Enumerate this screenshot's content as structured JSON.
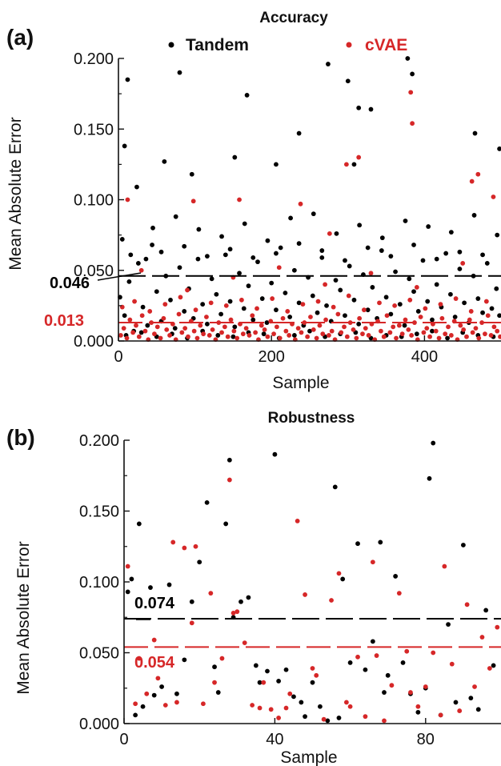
{
  "colors": {
    "tandem": "#000000",
    "cvae": "#d62728",
    "axis": "#111111"
  },
  "chart_data": [
    {
      "type": "scatter",
      "panel_label": "(a)",
      "title": "Accuracy",
      "xlabel": "Sample",
      "ylabel": "Mean Absolute Error",
      "xlim": [
        0,
        500
      ],
      "ylim": [
        0,
        0.2
      ],
      "xticks": [
        "0",
        "200",
        "400"
      ],
      "xtick_values": [
        0,
        200,
        400
      ],
      "yticks": [
        "0.000",
        "0.050",
        "0.100",
        "0.150",
        "0.200"
      ],
      "ytick_values": [
        0,
        0.05,
        0.1,
        0.15,
        0.2
      ],
      "grid": false,
      "legend": {
        "position": "top",
        "entries": [
          "Tandem",
          "cVAE"
        ]
      },
      "mean_lines": [
        {
          "series": "Tandem",
          "value": 0.046,
          "label": "0.046"
        },
        {
          "series": "cVAE",
          "value": 0.013,
          "label": "0.013"
        }
      ],
      "series": [
        {
          "name": "Tandem",
          "x": [
            2,
            8,
            14,
            20,
            26,
            32,
            38,
            44,
            50,
            56,
            62,
            68,
            74,
            80,
            86,
            92,
            98,
            104,
            110,
            116,
            122,
            128,
            134,
            140,
            146,
            152,
            158,
            164,
            170,
            176,
            182,
            188,
            194,
            200,
            206,
            212,
            218,
            224,
            230,
            236,
            242,
            248,
            254,
            260,
            266,
            272,
            278,
            284,
            290,
            296,
            302,
            308,
            314,
            320,
            326,
            332,
            338,
            344,
            350,
            356,
            362,
            368,
            374,
            380,
            386,
            392,
            398,
            404,
            410,
            416,
            422,
            428,
            434,
            440,
            446,
            452,
            458,
            464,
            470,
            476,
            482,
            488,
            494,
            498,
            8,
            12,
            24,
            60,
            80,
            96,
            152,
            168,
            206,
            236,
            274,
            300,
            308,
            314,
            330,
            378,
            384,
            466,
            498,
            5,
            45,
            75,
            105,
            135,
            165,
            195,
            225,
            255,
            285,
            315,
            345,
            375,
            405,
            435,
            465,
            495,
            16,
            36,
            56,
            86,
            116,
            146,
            176,
            206,
            236,
            266,
            296,
            326,
            356,
            386,
            416,
            446,
            476,
            10,
            30,
            50,
            70,
            90,
            110,
            130,
            150,
            170,
            190,
            210,
            230,
            250,
            270,
            290,
            310,
            330,
            350,
            370,
            390,
            410,
            430,
            450,
            470,
            490
          ],
          "y": [
            0.031,
            0.018,
            0.042,
            0.007,
            0.055,
            0.024,
            0.011,
            0.068,
            0.035,
            0.014,
            0.046,
            0.029,
            0.009,
            0.052,
            0.021,
            0.037,
            0.016,
            0.058,
            0.026,
            0.012,
            0.044,
            0.033,
            0.019,
            0.061,
            0.028,
            0.01,
            0.048,
            0.023,
            0.039,
            0.015,
            0.056,
            0.03,
            0.013,
            0.041,
            0.022,
            0.066,
            0.034,
            0.017,
            0.05,
            0.027,
            0.011,
            0.045,
            0.032,
            0.02,
            0.059,
            0.025,
            0.014,
            0.043,
            0.036,
            0.018,
            0.053,
            0.029,
            0.012,
            0.047,
            0.022,
            0.038,
            0.016,
            0.064,
            0.031,
            0.019,
            0.049,
            0.026,
            0.011,
            0.044,
            0.035,
            0.021,
            0.057,
            0.028,
            0.015,
            0.04,
            0.024,
            0.062,
            0.033,
            0.017,
            0.051,
            0.027,
            0.013,
            0.046,
            0.03,
            0.02,
            0.055,
            0.023,
            0.037,
            0.018,
            0.138,
            0.185,
            0.109,
            0.127,
            0.19,
            0.118,
            0.13,
            0.174,
            0.125,
            0.147,
            0.196,
            0.184,
            0.125,
            0.165,
            0.164,
            0.2,
            0.189,
            0.147,
            0.136,
            0.072,
            0.08,
            0.088,
            0.079,
            0.074,
            0.083,
            0.071,
            0.087,
            0.09,
            0.076,
            0.082,
            0.073,
            0.085,
            0.081,
            0.077,
            0.089,
            0.075,
            0.061,
            0.058,
            0.063,
            0.067,
            0.06,
            0.065,
            0.059,
            0.062,
            0.069,
            0.064,
            0.057,
            0.066,
            0.06,
            0.068,
            0.058,
            0.063,
            0.061,
            0.004,
            0.006,
            0.003,
            0.005,
            0.002,
            0.007,
            0.004,
            0.003,
            0.006,
            0.005,
            0.002,
            0.004,
            0.007,
            0.003,
            0.005,
            0.006,
            0.002,
            0.004,
            0.003,
            0.005,
            0.007,
            0.002,
            0.006,
            0.004,
            0.003
          ]
        },
        {
          "name": "cVAE",
          "x": [
            3,
            7,
            11,
            15,
            19,
            23,
            27,
            31,
            35,
            39,
            43,
            47,
            51,
            55,
            59,
            63,
            67,
            71,
            75,
            79,
            83,
            87,
            91,
            95,
            99,
            103,
            107,
            111,
            115,
            119,
            123,
            127,
            131,
            135,
            139,
            143,
            147,
            151,
            155,
            159,
            163,
            167,
            171,
            175,
            179,
            183,
            187,
            191,
            195,
            199,
            203,
            207,
            211,
            215,
            219,
            223,
            227,
            231,
            235,
            239,
            243,
            247,
            251,
            255,
            259,
            263,
            267,
            271,
            275,
            279,
            283,
            287,
            291,
            295,
            299,
            303,
            307,
            311,
            315,
            319,
            323,
            327,
            331,
            335,
            339,
            343,
            347,
            351,
            355,
            359,
            363,
            367,
            371,
            375,
            379,
            383,
            387,
            391,
            395,
            399,
            403,
            407,
            411,
            415,
            419,
            423,
            427,
            431,
            435,
            439,
            443,
            447,
            451,
            455,
            459,
            463,
            467,
            471,
            475,
            479,
            483,
            487,
            491,
            495,
            499,
            5,
            21,
            41,
            61,
            81,
            101,
            121,
            141,
            161,
            181,
            201,
            221,
            241,
            261,
            281,
            301,
            321,
            341,
            361,
            381,
            401,
            421,
            441,
            461,
            481,
            12,
            98,
            158,
            238,
            276,
            298,
            314,
            382,
            384,
            462,
            470,
            490,
            30,
            90,
            150,
            210,
            270,
            330,
            390,
            450
          ],
          "y": [
            0.004,
            0.009,
            0.002,
            0.015,
            0.006,
            0.011,
            0.003,
            0.018,
            0.007,
            0.001,
            0.013,
            0.005,
            0.01,
            0.002,
            0.016,
            0.008,
            0.004,
            0.012,
            0.001,
            0.019,
            0.006,
            0.009,
            0.003,
            0.014,
            0.007,
            0.002,
            0.011,
            0.005,
            0.017,
            0.004,
            0.008,
            0.001,
            0.013,
            0.006,
            0.01,
            0.003,
            0.015,
            0.007,
            0.002,
            0.012,
            0.005,
            0.009,
            0.004,
            0.018,
            0.006,
            0.001,
            0.011,
            0.008,
            0.003,
            0.014,
            0.005,
            0.01,
            0.002,
            0.016,
            0.007,
            0.004,
            0.012,
            0.001,
            0.009,
            0.006,
            0.013,
            0.003,
            0.017,
            0.008,
            0.002,
            0.011,
            0.005,
            0.015,
            0.004,
            0.007,
            0.001,
            0.019,
            0.006,
            0.01,
            0.003,
            0.013,
            0.008,
            0.002,
            0.016,
            0.005,
            0.009,
            0.004,
            0.012,
            0.001,
            0.014,
            0.007,
            0.003,
            0.018,
            0.006,
            0.01,
            0.002,
            0.011,
            0.005,
            0.015,
            0.008,
            0.004,
            0.013,
            0.001,
            0.017,
            0.006,
            0.009,
            0.003,
            0.012,
            0.007,
            0.002,
            0.016,
            0.005,
            0.01,
            0.004,
            0.014,
            0.001,
            0.011,
            0.008,
            0.003,
            0.015,
            0.006,
            0.009,
            0.002,
            0.013,
            0.005,
            0.018,
            0.004,
            0.01,
            0.007,
            0.003,
            0.024,
            0.028,
            0.021,
            0.026,
            0.031,
            0.022,
            0.027,
            0.025,
            0.029,
            0.023,
            0.03,
            0.021,
            0.026,
            0.028,
            0.024,
            0.032,
            0.022,
            0.027,
            0.025,
            0.029,
            0.023,
            0.026,
            0.03,
            0.021,
            0.028,
            0.1,
            0.099,
            0.1,
            0.097,
            0.076,
            0.125,
            0.13,
            0.176,
            0.154,
            0.113,
            0.118,
            0.102,
            0.05,
            0.036,
            0.045,
            0.052,
            0.04,
            0.048,
            0.038,
            0.055
          ]
        }
      ]
    },
    {
      "type": "scatter",
      "panel_label": "(b)",
      "title": "Robustness",
      "xlabel": "Sample",
      "ylabel": "Mean Absolute Error",
      "xlim": [
        0,
        100
      ],
      "ylim": [
        0,
        0.2
      ],
      "xticks": [
        "0",
        "40",
        "80"
      ],
      "xtick_values": [
        0,
        40,
        80
      ],
      "yticks": [
        "0.000",
        "0.050",
        "0.100",
        "0.150",
        "0.200"
      ],
      "ytick_values": [
        0,
        0.05,
        0.1,
        0.15,
        0.2
      ],
      "grid": false,
      "mean_lines": [
        {
          "series": "Tandem",
          "value": 0.074,
          "label": "0.074"
        },
        {
          "series": "cVAE",
          "value": 0.054,
          "label": "0.054"
        }
      ],
      "series": [
        {
          "name": "Tandem",
          "x": [
            1,
            2,
            3,
            4,
            5,
            7,
            8,
            10,
            12,
            14,
            16,
            18,
            20,
            22,
            24,
            25,
            27,
            28,
            29,
            31,
            33,
            35,
            36,
            38,
            40,
            41,
            43,
            45,
            47,
            48,
            50,
            52,
            54,
            56,
            57,
            58,
            60,
            62,
            64,
            66,
            68,
            69,
            70,
            72,
            74,
            76,
            78,
            80,
            81,
            82,
            84,
            86,
            88,
            90,
            92,
            94,
            96,
            98
          ],
          "y": [
            0.093,
            0.102,
            0.006,
            0.141,
            0.012,
            0.096,
            0.02,
            0.026,
            0.098,
            0.021,
            0.045,
            0.086,
            0.114,
            0.156,
            0.04,
            0.022,
            0.141,
            0.186,
            0.075,
            0.086,
            0.089,
            0.041,
            0.029,
            0.037,
            0.19,
            0.03,
            0.038,
            0.019,
            0.015,
            0.005,
            0.029,
            0.012,
            0.002,
            0.167,
            0.004,
            0.102,
            0.043,
            0.127,
            0.038,
            0.058,
            0.128,
            0.022,
            0.034,
            0.104,
            0.043,
            0.021,
            0.008,
            0.025,
            0.173,
            0.198,
            0.006,
            0.07,
            0.015,
            0.126,
            0.018,
            0.01,
            0.08,
            0.041
          ],
          "points_extra": []
        },
        {
          "name": "cVAE",
          "x": [
            1,
            3,
            4,
            6,
            8,
            9,
            11,
            13,
            14,
            16,
            18,
            19,
            21,
            23,
            24,
            26,
            28,
            29,
            30,
            32,
            34,
            36,
            37,
            39,
            41,
            43,
            44,
            46,
            48,
            50,
            51,
            53,
            55,
            57,
            59,
            60,
            62,
            64,
            66,
            67,
            69,
            71,
            73,
            75,
            76,
            78,
            80,
            82,
            84,
            85,
            87,
            89,
            91,
            93,
            95,
            97,
            99
          ],
          "y": [
            0.111,
            0.014,
            0.046,
            0.021,
            0.059,
            0.032,
            0.013,
            0.128,
            0.015,
            0.124,
            0.071,
            0.125,
            0.014,
            0.092,
            0.029,
            0.046,
            0.172,
            0.078,
            0.079,
            0.057,
            0.013,
            0.011,
            0.029,
            0.01,
            0.004,
            0.011,
            0.021,
            0.143,
            0.091,
            0.039,
            0.034,
            0.003,
            0.087,
            0.106,
            0.015,
            0.012,
            0.047,
            0.005,
            0.114,
            0.048,
            0.002,
            0.027,
            0.092,
            0.051,
            0.022,
            0.012,
            0.026,
            0.05,
            0.006,
            0.111,
            0.042,
            0.009,
            0.084,
            0.026,
            0.061,
            0.039,
            0.068
          ]
        }
      ]
    }
  ]
}
